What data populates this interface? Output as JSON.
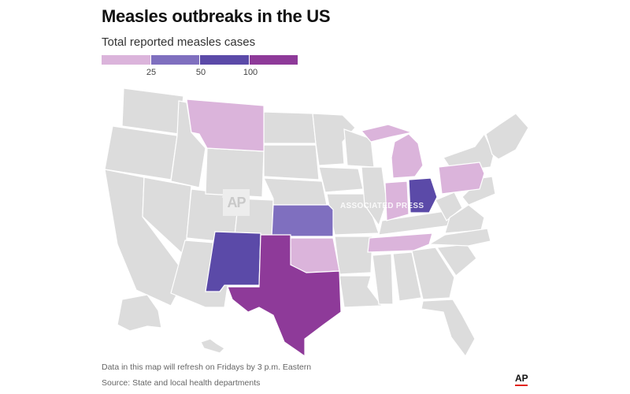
{
  "title": "Measles outbreaks in the US",
  "subtitle": "Total reported measles cases",
  "legend": {
    "colors": [
      "#dbb4db",
      "#7f6fbf",
      "#5b4aa8",
      "#8e3a99"
    ],
    "thresholds": [
      "25",
      "50",
      "100"
    ]
  },
  "map": {
    "base_color": "#dcdcdc",
    "border_color": "#ffffff",
    "highlighted_states": [
      {
        "state": "Montana",
        "bin": "1-25",
        "color": "#dbb4db"
      },
      {
        "state": "Michigan",
        "bin": "1-25",
        "color": "#dbb4db"
      },
      {
        "state": "Indiana",
        "bin": "1-25",
        "color": "#dbb4db"
      },
      {
        "state": "Pennsylvania",
        "bin": "1-25",
        "color": "#dbb4db"
      },
      {
        "state": "Tennessee",
        "bin": "1-25",
        "color": "#dbb4db"
      },
      {
        "state": "Oklahoma",
        "bin": "1-25",
        "color": "#dbb4db"
      },
      {
        "state": "Kansas",
        "bin": "25-50",
        "color": "#7f6fbf"
      },
      {
        "state": "Ohio",
        "bin": "50-100",
        "color": "#5b4aa8"
      },
      {
        "state": "New Mexico",
        "bin": "50-100",
        "color": "#5b4aa8"
      },
      {
        "state": "Texas",
        "bin": "100+",
        "color": "#8e3a99"
      }
    ]
  },
  "watermark": {
    "logo": "AP",
    "text": "ASSOCIATED PRESS"
  },
  "footnote": "Data in this map will refresh on Fridays by 3 p.m. Eastern",
  "source": "Source: State and local health departments",
  "logo": "AP"
}
